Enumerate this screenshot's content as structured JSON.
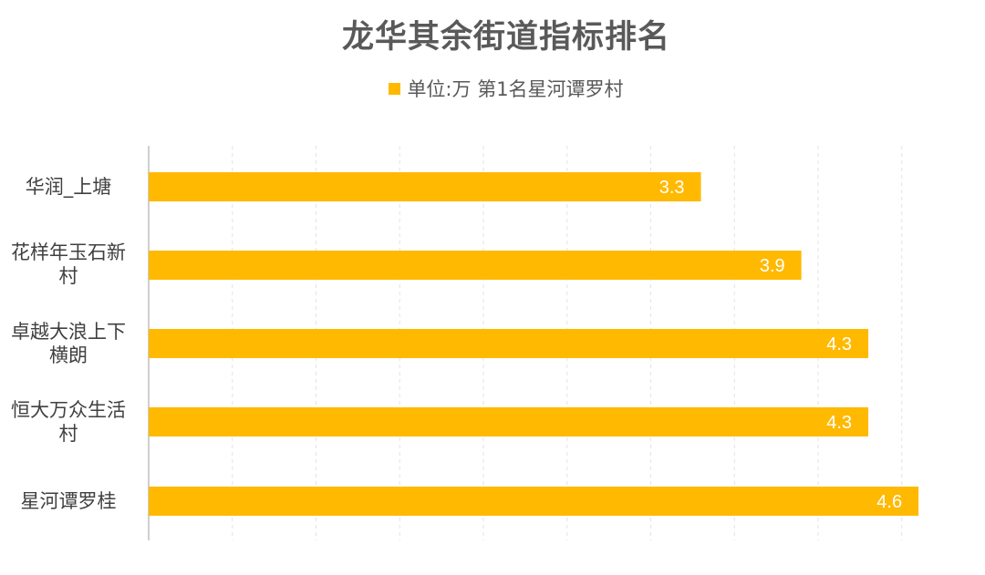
{
  "chart_data": {
    "type": "bar",
    "orientation": "horizontal",
    "title": "龙华其余街道指标排名",
    "legend": {
      "label": "单位:万 第1名星河谭罗村",
      "position": "top"
    },
    "categories": [
      "华润_上塘",
      "花样年玉石新村",
      "卓越大浪上下横朗",
      "恒大万众生活村",
      "星河谭罗桂"
    ],
    "values": [
      3.3,
      3.9,
      4.3,
      4.3,
      4.6
    ],
    "data_labels": [
      "3.3",
      "3.9",
      "4.3",
      "4.3",
      "4.6"
    ],
    "xlim": [
      0,
      4.5
    ],
    "grid": "vertical dashed",
    "colors": {
      "bar": "#FFB900",
      "data_label": "#FFFFFF",
      "axis": "#BFBFBF",
      "grid": "#E3E3E3"
    }
  }
}
